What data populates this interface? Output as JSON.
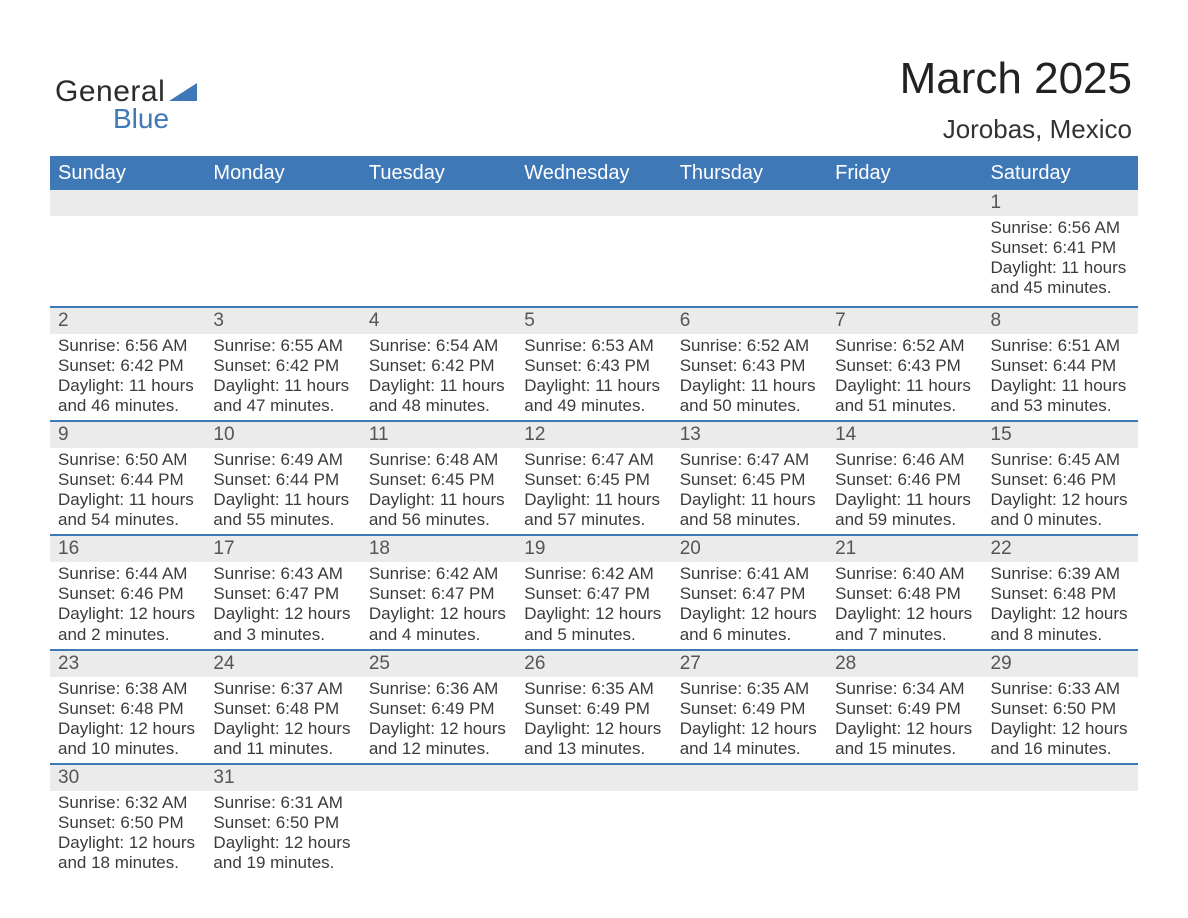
{
  "logo": {
    "general": "General",
    "blue": "Blue"
  },
  "title": {
    "month": "March 2025",
    "location": "Jorobas, Mexico"
  },
  "colors": {
    "header_bg": "#3f78b6",
    "header_text": "#ffffff",
    "daynum_bg": "#ebebeb",
    "text": "#3b3b3b",
    "rule": "#3f78b6"
  },
  "day_headers": [
    "Sunday",
    "Monday",
    "Tuesday",
    "Wednesday",
    "Thursday",
    "Friday",
    "Saturday"
  ],
  "weeks": [
    [
      {
        "n": ""
      },
      {
        "n": ""
      },
      {
        "n": ""
      },
      {
        "n": ""
      },
      {
        "n": ""
      },
      {
        "n": ""
      },
      {
        "n": "1",
        "sr": "Sunrise: 6:56 AM",
        "ss": "Sunset: 6:41 PM",
        "d1": "Daylight: 11 hours",
        "d2": "and 45 minutes."
      }
    ],
    [
      {
        "n": "2",
        "sr": "Sunrise: 6:56 AM",
        "ss": "Sunset: 6:42 PM",
        "d1": "Daylight: 11 hours",
        "d2": "and 46 minutes."
      },
      {
        "n": "3",
        "sr": "Sunrise: 6:55 AM",
        "ss": "Sunset: 6:42 PM",
        "d1": "Daylight: 11 hours",
        "d2": "and 47 minutes."
      },
      {
        "n": "4",
        "sr": "Sunrise: 6:54 AM",
        "ss": "Sunset: 6:42 PM",
        "d1": "Daylight: 11 hours",
        "d2": "and 48 minutes."
      },
      {
        "n": "5",
        "sr": "Sunrise: 6:53 AM",
        "ss": "Sunset: 6:43 PM",
        "d1": "Daylight: 11 hours",
        "d2": "and 49 minutes."
      },
      {
        "n": "6",
        "sr": "Sunrise: 6:52 AM",
        "ss": "Sunset: 6:43 PM",
        "d1": "Daylight: 11 hours",
        "d2": "and 50 minutes."
      },
      {
        "n": "7",
        "sr": "Sunrise: 6:52 AM",
        "ss": "Sunset: 6:43 PM",
        "d1": "Daylight: 11 hours",
        "d2": "and 51 minutes."
      },
      {
        "n": "8",
        "sr": "Sunrise: 6:51 AM",
        "ss": "Sunset: 6:44 PM",
        "d1": "Daylight: 11 hours",
        "d2": "and 53 minutes."
      }
    ],
    [
      {
        "n": "9",
        "sr": "Sunrise: 6:50 AM",
        "ss": "Sunset: 6:44 PM",
        "d1": "Daylight: 11 hours",
        "d2": "and 54 minutes."
      },
      {
        "n": "10",
        "sr": "Sunrise: 6:49 AM",
        "ss": "Sunset: 6:44 PM",
        "d1": "Daylight: 11 hours",
        "d2": "and 55 minutes."
      },
      {
        "n": "11",
        "sr": "Sunrise: 6:48 AM",
        "ss": "Sunset: 6:45 PM",
        "d1": "Daylight: 11 hours",
        "d2": "and 56 minutes."
      },
      {
        "n": "12",
        "sr": "Sunrise: 6:47 AM",
        "ss": "Sunset: 6:45 PM",
        "d1": "Daylight: 11 hours",
        "d2": "and 57 minutes."
      },
      {
        "n": "13",
        "sr": "Sunrise: 6:47 AM",
        "ss": "Sunset: 6:45 PM",
        "d1": "Daylight: 11 hours",
        "d2": "and 58 minutes."
      },
      {
        "n": "14",
        "sr": "Sunrise: 6:46 AM",
        "ss": "Sunset: 6:46 PM",
        "d1": "Daylight: 11 hours",
        "d2": "and 59 minutes."
      },
      {
        "n": "15",
        "sr": "Sunrise: 6:45 AM",
        "ss": "Sunset: 6:46 PM",
        "d1": "Daylight: 12 hours",
        "d2": "and 0 minutes."
      }
    ],
    [
      {
        "n": "16",
        "sr": "Sunrise: 6:44 AM",
        "ss": "Sunset: 6:46 PM",
        "d1": "Daylight: 12 hours",
        "d2": "and 2 minutes."
      },
      {
        "n": "17",
        "sr": "Sunrise: 6:43 AM",
        "ss": "Sunset: 6:47 PM",
        "d1": "Daylight: 12 hours",
        "d2": "and 3 minutes."
      },
      {
        "n": "18",
        "sr": "Sunrise: 6:42 AM",
        "ss": "Sunset: 6:47 PM",
        "d1": "Daylight: 12 hours",
        "d2": "and 4 minutes."
      },
      {
        "n": "19",
        "sr": "Sunrise: 6:42 AM",
        "ss": "Sunset: 6:47 PM",
        "d1": "Daylight: 12 hours",
        "d2": "and 5 minutes."
      },
      {
        "n": "20",
        "sr": "Sunrise: 6:41 AM",
        "ss": "Sunset: 6:47 PM",
        "d1": "Daylight: 12 hours",
        "d2": "and 6 minutes."
      },
      {
        "n": "21",
        "sr": "Sunrise: 6:40 AM",
        "ss": "Sunset: 6:48 PM",
        "d1": "Daylight: 12 hours",
        "d2": "and 7 minutes."
      },
      {
        "n": "22",
        "sr": "Sunrise: 6:39 AM",
        "ss": "Sunset: 6:48 PM",
        "d1": "Daylight: 12 hours",
        "d2": "and 8 minutes."
      }
    ],
    [
      {
        "n": "23",
        "sr": "Sunrise: 6:38 AM",
        "ss": "Sunset: 6:48 PM",
        "d1": "Daylight: 12 hours",
        "d2": "and 10 minutes."
      },
      {
        "n": "24",
        "sr": "Sunrise: 6:37 AM",
        "ss": "Sunset: 6:48 PM",
        "d1": "Daylight: 12 hours",
        "d2": "and 11 minutes."
      },
      {
        "n": "25",
        "sr": "Sunrise: 6:36 AM",
        "ss": "Sunset: 6:49 PM",
        "d1": "Daylight: 12 hours",
        "d2": "and 12 minutes."
      },
      {
        "n": "26",
        "sr": "Sunrise: 6:35 AM",
        "ss": "Sunset: 6:49 PM",
        "d1": "Daylight: 12 hours",
        "d2": "and 13 minutes."
      },
      {
        "n": "27",
        "sr": "Sunrise: 6:35 AM",
        "ss": "Sunset: 6:49 PM",
        "d1": "Daylight: 12 hours",
        "d2": "and 14 minutes."
      },
      {
        "n": "28",
        "sr": "Sunrise: 6:34 AM",
        "ss": "Sunset: 6:49 PM",
        "d1": "Daylight: 12 hours",
        "d2": "and 15 minutes."
      },
      {
        "n": "29",
        "sr": "Sunrise: 6:33 AM",
        "ss": "Sunset: 6:50 PM",
        "d1": "Daylight: 12 hours",
        "d2": "and 16 minutes."
      }
    ],
    [
      {
        "n": "30",
        "sr": "Sunrise: 6:32 AM",
        "ss": "Sunset: 6:50 PM",
        "d1": "Daylight: 12 hours",
        "d2": "and 18 minutes."
      },
      {
        "n": "31",
        "sr": "Sunrise: 6:31 AM",
        "ss": "Sunset: 6:50 PM",
        "d1": "Daylight: 12 hours",
        "d2": "and 19 minutes."
      },
      {
        "n": ""
      },
      {
        "n": ""
      },
      {
        "n": ""
      },
      {
        "n": ""
      },
      {
        "n": ""
      }
    ]
  ]
}
